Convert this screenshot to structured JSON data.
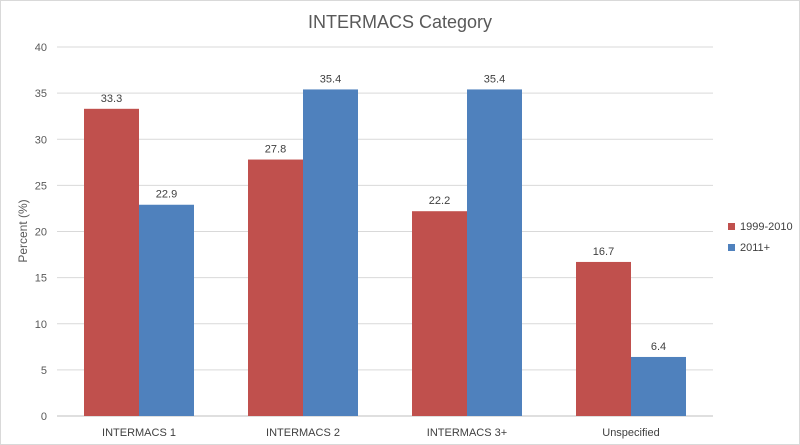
{
  "chart_data": {
    "type": "bar",
    "title": "INTERMACS Category",
    "xlabel": "",
    "ylabel": "Percent (%)",
    "ylim": [
      0,
      40
    ],
    "yticks": [
      0,
      5,
      10,
      15,
      20,
      25,
      30,
      35,
      40
    ],
    "grid": true,
    "legend_position": "right",
    "categories": [
      "INTERMACS 1",
      "INTERMACS 2",
      "INTERMACS 3+",
      "Unspecified"
    ],
    "series": [
      {
        "name": "1999-2010",
        "color": "#c0504d",
        "values": [
          33.3,
          27.8,
          22.2,
          16.7
        ],
        "labels": [
          "33.3",
          "27.8",
          "22.2",
          "16.7"
        ]
      },
      {
        "name": "2011+",
        "color": "#4f81bd",
        "values": [
          22.9,
          35.4,
          35.4,
          6.4
        ],
        "labels": [
          "22.9",
          "35.4",
          "35.4",
          "6.4"
        ]
      }
    ]
  }
}
